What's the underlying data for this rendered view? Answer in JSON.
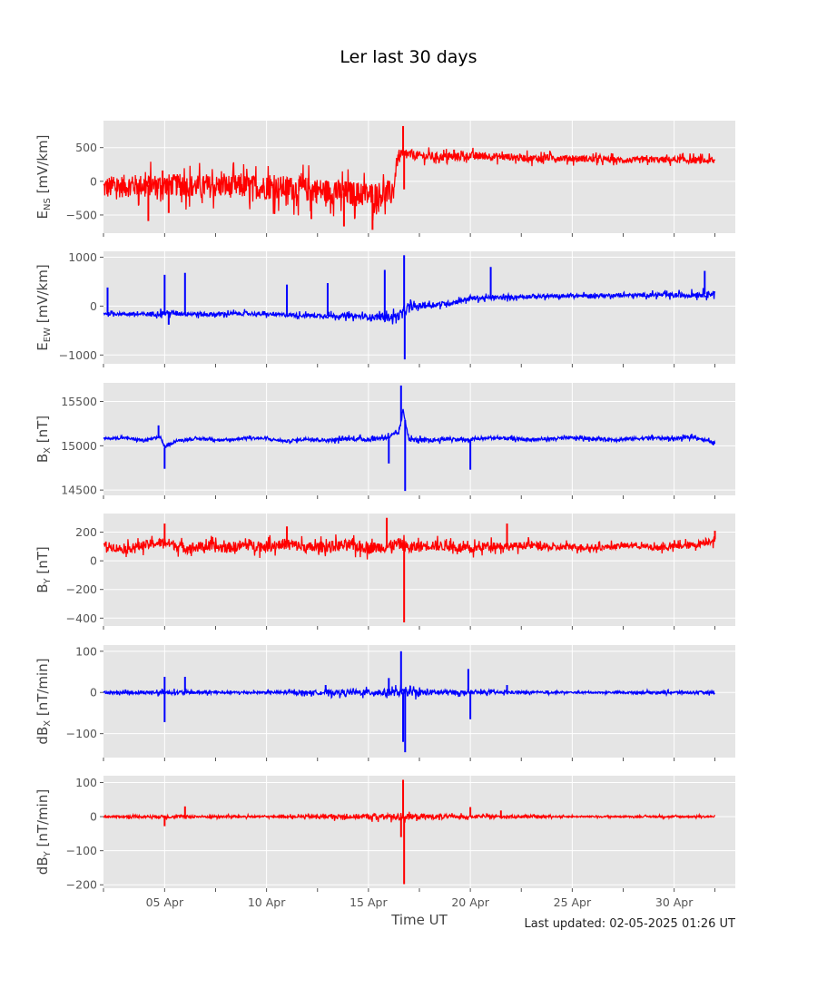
{
  "title": "Ler last 30 days",
  "last_updated": "Last updated: 02-05-2025 01:26 UT",
  "chart_data": {
    "type": "line",
    "title": "Ler last 30 days",
    "xlabel": "Time UT",
    "x_ticks": [
      "05 Apr",
      "10 Apr",
      "15 Apr",
      "20 Apr",
      "25 Apr",
      "30 Apr"
    ],
    "x_tick_days": [
      5,
      10,
      15,
      20,
      25,
      30
    ],
    "xlim_days": [
      2.0,
      33.0
    ],
    "grid": true,
    "panels": [
      {
        "name": "E_NS",
        "ylabel_main": "E",
        "ylabel_sub": "NS",
        "ylabel_unit": " [mV/km]",
        "color": "#ff0000",
        "ylim": [
          -770,
          900
        ],
        "yticks": [
          500,
          0,
          -500
        ],
        "ytick_labels": [
          "500",
          "0",
          "−500"
        ],
        "x": [
          2.0,
          3.0,
          4.0,
          5.0,
          6.0,
          7.0,
          8.0,
          9.0,
          10.0,
          11.0,
          12.0,
          13.0,
          14.0,
          15.0,
          16.2,
          16.4,
          16.6,
          16.8,
          17.5,
          18.0,
          19.0,
          20.0,
          21.0,
          22.0,
          23.0,
          24.0,
          25.0,
          26.0,
          27.0,
          28.0,
          29.0,
          30.0,
          31.0,
          32.0
        ],
        "y": [
          -100,
          -70,
          -60,
          -50,
          -60,
          -80,
          -70,
          -80,
          -90,
          -100,
          -120,
          -150,
          -180,
          -200,
          -180,
          300,
          380,
          400,
          380,
          370,
          360,
          380,
          370,
          360,
          340,
          350,
          340,
          330,
          320,
          310,
          320,
          320,
          310,
          300
        ],
        "spread": [
          [
            2.0,
            380
          ],
          [
            5.0,
            360
          ],
          [
            10.0,
            400
          ],
          [
            14.0,
            420
          ],
          [
            16.2,
            420
          ],
          [
            16.4,
            200
          ],
          [
            17.5,
            140
          ],
          [
            22.0,
            120
          ],
          [
            27.0,
            100
          ],
          [
            32.0,
            110
          ]
        ],
        "spikes": [
          {
            "x": 16.7,
            "y": 820
          },
          {
            "x": 16.75,
            "y": -120
          },
          {
            "x": 15.2,
            "y": -720
          },
          {
            "x": 13.8,
            "y": -670
          },
          {
            "x": 4.2,
            "y": -590
          },
          {
            "x": 4.9,
            "y": 160
          },
          {
            "x": 5.2,
            "y": -470
          },
          {
            "x": 12.2,
            "y": -560
          },
          {
            "x": 19.2,
            "y": 470
          }
        ]
      },
      {
        "name": "E_EW",
        "ylabel_main": "E",
        "ylabel_sub": "EW",
        "ylabel_unit": " [mV/km]",
        "color": "#0000ff",
        "ylim": [
          -1180,
          1120
        ],
        "yticks": [
          1000,
          0,
          -1000
        ],
        "ytick_labels": [
          "1000",
          "0",
          "−1000"
        ],
        "x": [
          2.0,
          3.0,
          4.0,
          5.0,
          6.0,
          7.0,
          8.0,
          9.0,
          10.0,
          11.0,
          12.0,
          13.0,
          14.0,
          15.0,
          16.0,
          16.5,
          17.0,
          18.0,
          19.0,
          20.0,
          21.0,
          22.0,
          23.0,
          24.0,
          25.0,
          26.0,
          27.0,
          28.0,
          29.0,
          30.0,
          31.0,
          32.0
        ],
        "y": [
          -150,
          -160,
          -170,
          -140,
          -150,
          -170,
          -160,
          -150,
          -170,
          -180,
          -190,
          -200,
          -200,
          -220,
          -230,
          -200,
          -20,
          20,
          60,
          160,
          170,
          180,
          200,
          200,
          210,
          210,
          220,
          220,
          230,
          220,
          230,
          260
        ],
        "spread": [
          [
            2.0,
            60
          ],
          [
            5.0,
            120
          ],
          [
            10.0,
            80
          ],
          [
            15.0,
            120
          ],
          [
            16.5,
            200
          ],
          [
            18.0,
            120
          ],
          [
            22.0,
            90
          ],
          [
            28.0,
            80
          ],
          [
            32.0,
            140
          ]
        ],
        "spikes": [
          {
            "x": 16.75,
            "y": 1040
          },
          {
            "x": 16.78,
            "y": -1090
          },
          {
            "x": 2.2,
            "y": 380
          },
          {
            "x": 5.0,
            "y": 640
          },
          {
            "x": 6.0,
            "y": 680
          },
          {
            "x": 5.2,
            "y": -380
          },
          {
            "x": 15.8,
            "y": 740
          },
          {
            "x": 21.0,
            "y": 800
          },
          {
            "x": 31.5,
            "y": 720
          },
          {
            "x": 13.0,
            "y": 470
          },
          {
            "x": 11.0,
            "y": 440
          }
        ]
      },
      {
        "name": "B_X",
        "ylabel_main": "B",
        "ylabel_sub": "X",
        "ylabel_unit": " [nT]",
        "color": "#0000ff",
        "ylim": [
          14440,
          15710
        ],
        "yticks": [
          15500,
          15000,
          14500
        ],
        "ytick_labels": [
          "15500",
          "15000",
          "14500"
        ],
        "x": [
          2.0,
          3.0,
          4.0,
          4.8,
          5.0,
          5.5,
          6.0,
          7.0,
          8.0,
          9.0,
          10.0,
          11.0,
          12.0,
          13.0,
          14.0,
          15.0,
          16.0,
          16.5,
          16.7,
          17.0,
          18.0,
          19.0,
          19.9,
          20.0,
          21.0,
          22.0,
          23.0,
          24.0,
          25.0,
          26.0,
          27.0,
          28.0,
          29.0,
          30.0,
          31.0,
          32.0
        ],
        "y": [
          15080,
          15090,
          15060,
          15100,
          14980,
          15050,
          15070,
          15080,
          15060,
          15090,
          15080,
          15050,
          15080,
          15060,
          15080,
          15070,
          15100,
          15150,
          15400,
          15070,
          15060,
          15080,
          15060,
          15070,
          15090,
          15080,
          15070,
          15080,
          15090,
          15080,
          15070,
          15080,
          15090,
          15080,
          15100,
          15030
        ],
        "spread": [
          [
            2.0,
            30
          ],
          [
            10.0,
            30
          ],
          [
            16.5,
            60
          ],
          [
            20.0,
            40
          ],
          [
            32.0,
            40
          ]
        ],
        "spikes": [
          {
            "x": 16.6,
            "y": 15680
          },
          {
            "x": 16.8,
            "y": 14490
          },
          {
            "x": 16.0,
            "y": 14800
          },
          {
            "x": 5.0,
            "y": 14740
          },
          {
            "x": 20.0,
            "y": 14730
          },
          {
            "x": 4.7,
            "y": 15230
          }
        ]
      },
      {
        "name": "B_Y",
        "ylabel_main": "B",
        "ylabel_sub": "Y",
        "ylabel_unit": " [nT]",
        "color": "#ff0000",
        "ylim": [
          -455,
          330
        ],
        "yticks": [
          200,
          0,
          -200,
          -400
        ],
        "ytick_labels": [
          "200",
          "0",
          "−200",
          "−400"
        ],
        "x": [
          2.0,
          3.0,
          4.0,
          5.0,
          6.0,
          7.0,
          8.0,
          9.0,
          10.0,
          11.0,
          12.0,
          13.0,
          14.0,
          15.0,
          16.0,
          16.5,
          17.0,
          18.0,
          19.0,
          20.0,
          21.0,
          22.0,
          23.0,
          24.0,
          25.0,
          26.0,
          27.0,
          28.0,
          29.0,
          30.0,
          31.0,
          32.0
        ],
        "y": [
          110,
          80,
          110,
          130,
          90,
          100,
          90,
          110,
          100,
          120,
          90,
          100,
          110,
          90,
          100,
          120,
          90,
          110,
          100,
          80,
          110,
          100,
          110,
          90,
          100,
          90,
          100,
          110,
          90,
          100,
          110,
          150
        ],
        "spread": [
          [
            2.0,
            60
          ],
          [
            6.0,
            80
          ],
          [
            16.5,
            90
          ],
          [
            22.0,
            60
          ],
          [
            28.0,
            40
          ],
          [
            32.0,
            60
          ]
        ],
        "spikes": [
          {
            "x": 16.75,
            "y": -430
          },
          {
            "x": 15.9,
            "y": 300
          },
          {
            "x": 5.0,
            "y": 260
          },
          {
            "x": 21.8,
            "y": 260
          },
          {
            "x": 11.0,
            "y": 240
          },
          {
            "x": 32.0,
            "y": 210
          }
        ]
      },
      {
        "name": "dB_X",
        "ylabel_main": "dB",
        "ylabel_sub": "X",
        "ylabel_unit": " [nT/min]",
        "color": "#0000ff",
        "ylim": [
          -158,
          115
        ],
        "yticks": [
          100,
          0,
          -100
        ],
        "ytick_labels": [
          "100",
          "0",
          "−100"
        ],
        "x": [
          2.0,
          32.0
        ],
        "y": [
          0,
          0
        ],
        "spread": [
          [
            2.0,
            6
          ],
          [
            5.0,
            10
          ],
          [
            10.0,
            6
          ],
          [
            16.5,
            20
          ],
          [
            20.0,
            10
          ],
          [
            25.0,
            4
          ],
          [
            32.0,
            8
          ]
        ],
        "spikes": [
          {
            "x": 16.6,
            "y": 100
          },
          {
            "x": 16.8,
            "y": -145
          },
          {
            "x": 16.7,
            "y": -120
          },
          {
            "x": 5.0,
            "y": -72
          },
          {
            "x": 5.0,
            "y": 38
          },
          {
            "x": 6.0,
            "y": 38
          },
          {
            "x": 19.9,
            "y": 57
          },
          {
            "x": 20.0,
            "y": -65
          },
          {
            "x": 16.0,
            "y": 35
          },
          {
            "x": 12.9,
            "y": 18
          },
          {
            "x": 21.8,
            "y": 18
          }
        ]
      },
      {
        "name": "dB_Y",
        "ylabel_main": "dB",
        "ylabel_sub": "Y",
        "ylabel_unit": " [nT/min]",
        "color": "#ff0000",
        "ylim": [
          -210,
          120
        ],
        "yticks": [
          100,
          0,
          -100,
          -200
        ],
        "ytick_labels": [
          "100",
          "0",
          "−100",
          "−200"
        ],
        "x": [
          2.0,
          32.0
        ],
        "y": [
          0,
          0
        ],
        "spread": [
          [
            2.0,
            5
          ],
          [
            5.0,
            10
          ],
          [
            10.0,
            5
          ],
          [
            16.5,
            20
          ],
          [
            20.0,
            10
          ],
          [
            25.0,
            4
          ],
          [
            32.0,
            6
          ]
        ],
        "spikes": [
          {
            "x": 16.7,
            "y": 108
          },
          {
            "x": 16.75,
            "y": -198
          },
          {
            "x": 16.6,
            "y": -60
          },
          {
            "x": 5.0,
            "y": -28
          },
          {
            "x": 6.0,
            "y": 30
          },
          {
            "x": 20.0,
            "y": 28
          },
          {
            "x": 21.5,
            "y": 18
          }
        ]
      }
    ]
  }
}
